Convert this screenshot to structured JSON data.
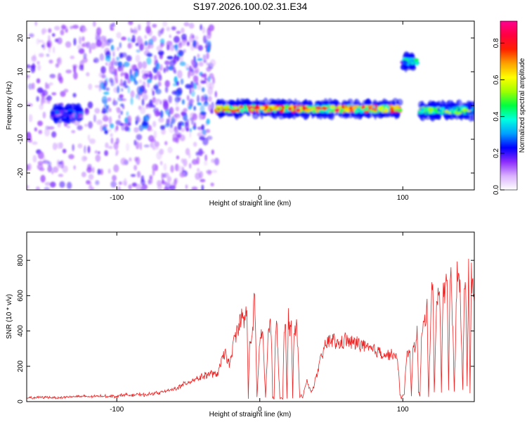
{
  "title": "S197.2026.100.02.31.E34",
  "chart_data": [
    {
      "type": "heatmap",
      "xlabel": "Height of straight line (km)",
      "ylabel": "Frequency (Hz)",
      "xlim": [
        -163,
        150
      ],
      "ylim": [
        -25,
        25
      ],
      "xticks": [
        -100,
        0,
        100
      ],
      "yticks": [
        -20,
        -10,
        0,
        10,
        20
      ],
      "grid": false,
      "colorbar": {
        "label": "Normalized spectral amplitude",
        "range": [
          0,
          0.92
        ],
        "ticks": [
          0.0,
          0.2,
          0.4,
          0.6,
          0.8
        ],
        "colors": [
          "#ffffff",
          "#d9b0ff",
          "#8c2bff",
          "#0000ff",
          "#00a0ff",
          "#00ffe0",
          "#00ff40",
          "#a0ff00",
          "#ffff00",
          "#ffa000",
          "#ff2000",
          "#ff0040",
          "#ff0090"
        ]
      },
      "features": [
        {
          "label": "scattered noise",
          "x_range": [
            -163,
            -30
          ],
          "freq_range": [
            -25,
            25
          ],
          "amplitude": 0.15
        },
        {
          "label": "line near -2 Hz",
          "x_range": [
            -145,
            -125
          ],
          "freq": -2.5,
          "amplitude": 0.3
        },
        {
          "label": "spread trace",
          "x_range": [
            -110,
            -35
          ],
          "freq_range": [
            -8,
            20
          ],
          "amplitude": 0.25
        },
        {
          "label": "main line near 0 Hz",
          "x_range": [
            -30,
            98
          ],
          "freq": -1.0,
          "amplitude": 0.9
        },
        {
          "label": "band at 13 Hz",
          "x_range": [
            100,
            110
          ],
          "freq": 13,
          "amplitude": 0.45
        },
        {
          "label": "line near 0 Hz",
          "x_range": [
            112,
            150
          ],
          "freq": -1.5,
          "amplitude": 0.6
        }
      ]
    },
    {
      "type": "line",
      "xlabel": "Height of straight line (km)",
      "ylabel": "SNR (10 * v/v)",
      "xlim": [
        -163,
        150
      ],
      "ylim": [
        0,
        960
      ],
      "xticks": [
        -100,
        0,
        100
      ],
      "yticks": [
        0,
        200,
        400,
        600,
        800
      ],
      "grid": false,
      "series": [
        {
          "color": "#ee2222",
          "x": [
            -163,
            -150,
            -140,
            -130,
            -120,
            -110,
            -100,
            -95,
            -90,
            -85,
            -80,
            -75,
            -70,
            -65,
            -60,
            -55,
            -50,
            -45,
            -40,
            -35,
            -30,
            -27,
            -24,
            -21,
            -19,
            -17,
            -15,
            -13,
            -11,
            -9,
            -8,
            -7,
            -6,
            -5,
            -4,
            -3,
            -2,
            0,
            2,
            4,
            6,
            7,
            8,
            9,
            10,
            11,
            12,
            14,
            16,
            17,
            18,
            19,
            20,
            21,
            22,
            23,
            24,
            26,
            28,
            29,
            30,
            31,
            33,
            36,
            40,
            43,
            46,
            50,
            55,
            60,
            65,
            70,
            75,
            80,
            85,
            90,
            93,
            95,
            97,
            98,
            99,
            100,
            101,
            103,
            105,
            106,
            107,
            108,
            110,
            111,
            112,
            113,
            115,
            117,
            118,
            120,
            121,
            122,
            124,
            126,
            127,
            128,
            130,
            131,
            132,
            133,
            134,
            136,
            138,
            140,
            142,
            143,
            144,
            145,
            146,
            147,
            148,
            149,
            150
          ],
          "values": [
            20,
            25,
            22,
            30,
            28,
            32,
            30,
            40,
            35,
            40,
            38,
            45,
            50,
            60,
            70,
            90,
            110,
            130,
            140,
            160,
            150,
            220,
            280,
            200,
            300,
            380,
            420,
            480,
            450,
            520,
            20,
            360,
            350,
            380,
            600,
            420,
            20,
            350,
            400,
            20,
            380,
            440,
            420,
            20,
            20,
            400,
            420,
            20,
            20,
            440,
            400,
            20,
            480,
            420,
            460,
            20,
            400,
            420,
            20,
            40,
            20,
            60,
            120,
            50,
            150,
            250,
            320,
            360,
            320,
            350,
            330,
            330,
            300,
            290,
            280,
            260,
            270,
            250,
            200,
            40,
            20,
            30,
            40,
            300,
            260,
            30,
            280,
            300,
            400,
            60,
            30,
            350,
            450,
            520,
            30,
            600,
            700,
            60,
            620,
            580,
            50,
            600,
            650,
            680,
            60,
            720,
            700,
            60,
            720,
            650,
            60,
            680,
            700,
            90,
            780,
            50,
            700,
            680,
            560
          ]
        }
      ]
    }
  ]
}
